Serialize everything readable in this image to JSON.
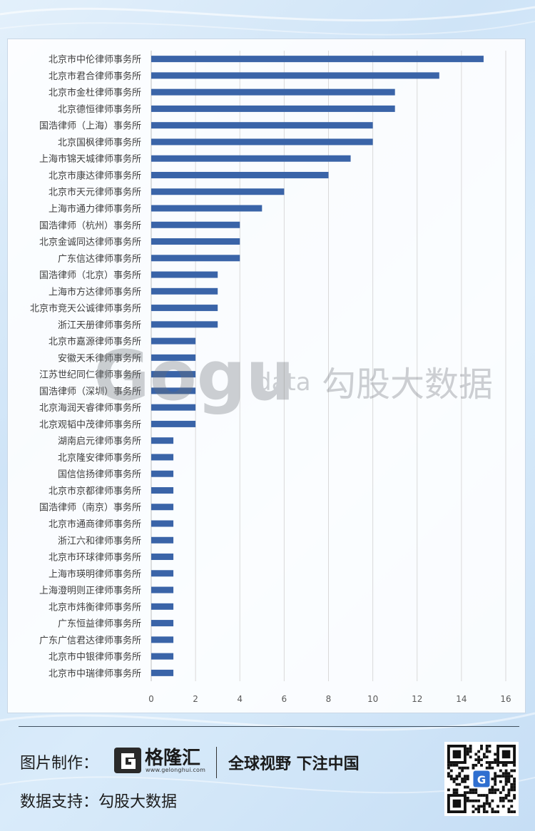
{
  "chart_data": {
    "type": "bar",
    "orientation": "horizontal",
    "categories": [
      "北京市中伦律师事务所",
      "北京市君合律师事务所",
      "北京市金杜律师事务所",
      "北京德恒律师事务所",
      "国浩律师（上海）事务所",
      "北京国枫律师事务所",
      "上海市锦天城律师事务所",
      "北京市康达律师事务所",
      "北京市天元律师事务所",
      "上海市通力律师事务所",
      "国浩律师（杭州）事务所",
      "北京金诚同达律师事务所",
      "广东信达律师事务所",
      "国浩律师（北京）事务所",
      "上海市方达律师事务所",
      "北京市竞天公诚律师事务所",
      "浙江天册律师事务所",
      "北京市嘉源律师事务所",
      "安徽天禾律师事务所",
      "江苏世纪同仁律师事务所",
      "国浩律师（深圳）事务所",
      "北京海润天睿律师事务所",
      "北京观韬中茂律师事务所",
      "湖南启元律师事务所",
      "北京隆安律师事务所",
      "国信信扬律师事务所",
      "北京市京都律师事务所",
      "国浩律师（南京）事务所",
      "北京市通商律师事务所",
      "浙江六和律师事务所",
      "北京市环球律师事务所",
      "上海市瑛明律师事务所",
      "上海澄明则正律师事务所",
      "北京市炜衡律师事务所",
      "广东恒益律师事务所",
      "广东广信君达律师事务所",
      "北京市中银律师事务所",
      "北京市中瑞律师事务所"
    ],
    "values": [
      15,
      13,
      11,
      11,
      10,
      10,
      9,
      8,
      6,
      5,
      4,
      4,
      4,
      3,
      3,
      3,
      3,
      2,
      2,
      2,
      2,
      2,
      2,
      1,
      1,
      1,
      1,
      1,
      1,
      1,
      1,
      1,
      1,
      1,
      1,
      1,
      1,
      1
    ],
    "xlim": [
      0,
      16
    ],
    "xticks": [
      "0",
      "2",
      "4",
      "6",
      "8",
      "10",
      "12",
      "14",
      "16"
    ],
    "grid": "vertical",
    "bar_color": "#3a64a8"
  },
  "watermark": {
    "brand": "Gogu",
    "sub": "data",
    "cn": "勾股大数据"
  },
  "footer": {
    "made_by_label": "图片制作：",
    "logo_text": "格隆汇",
    "logo_url": "www.gelonghui.com",
    "slogan": "全球视野 下注中国",
    "data_label": "数据支持：勾股大数据"
  }
}
